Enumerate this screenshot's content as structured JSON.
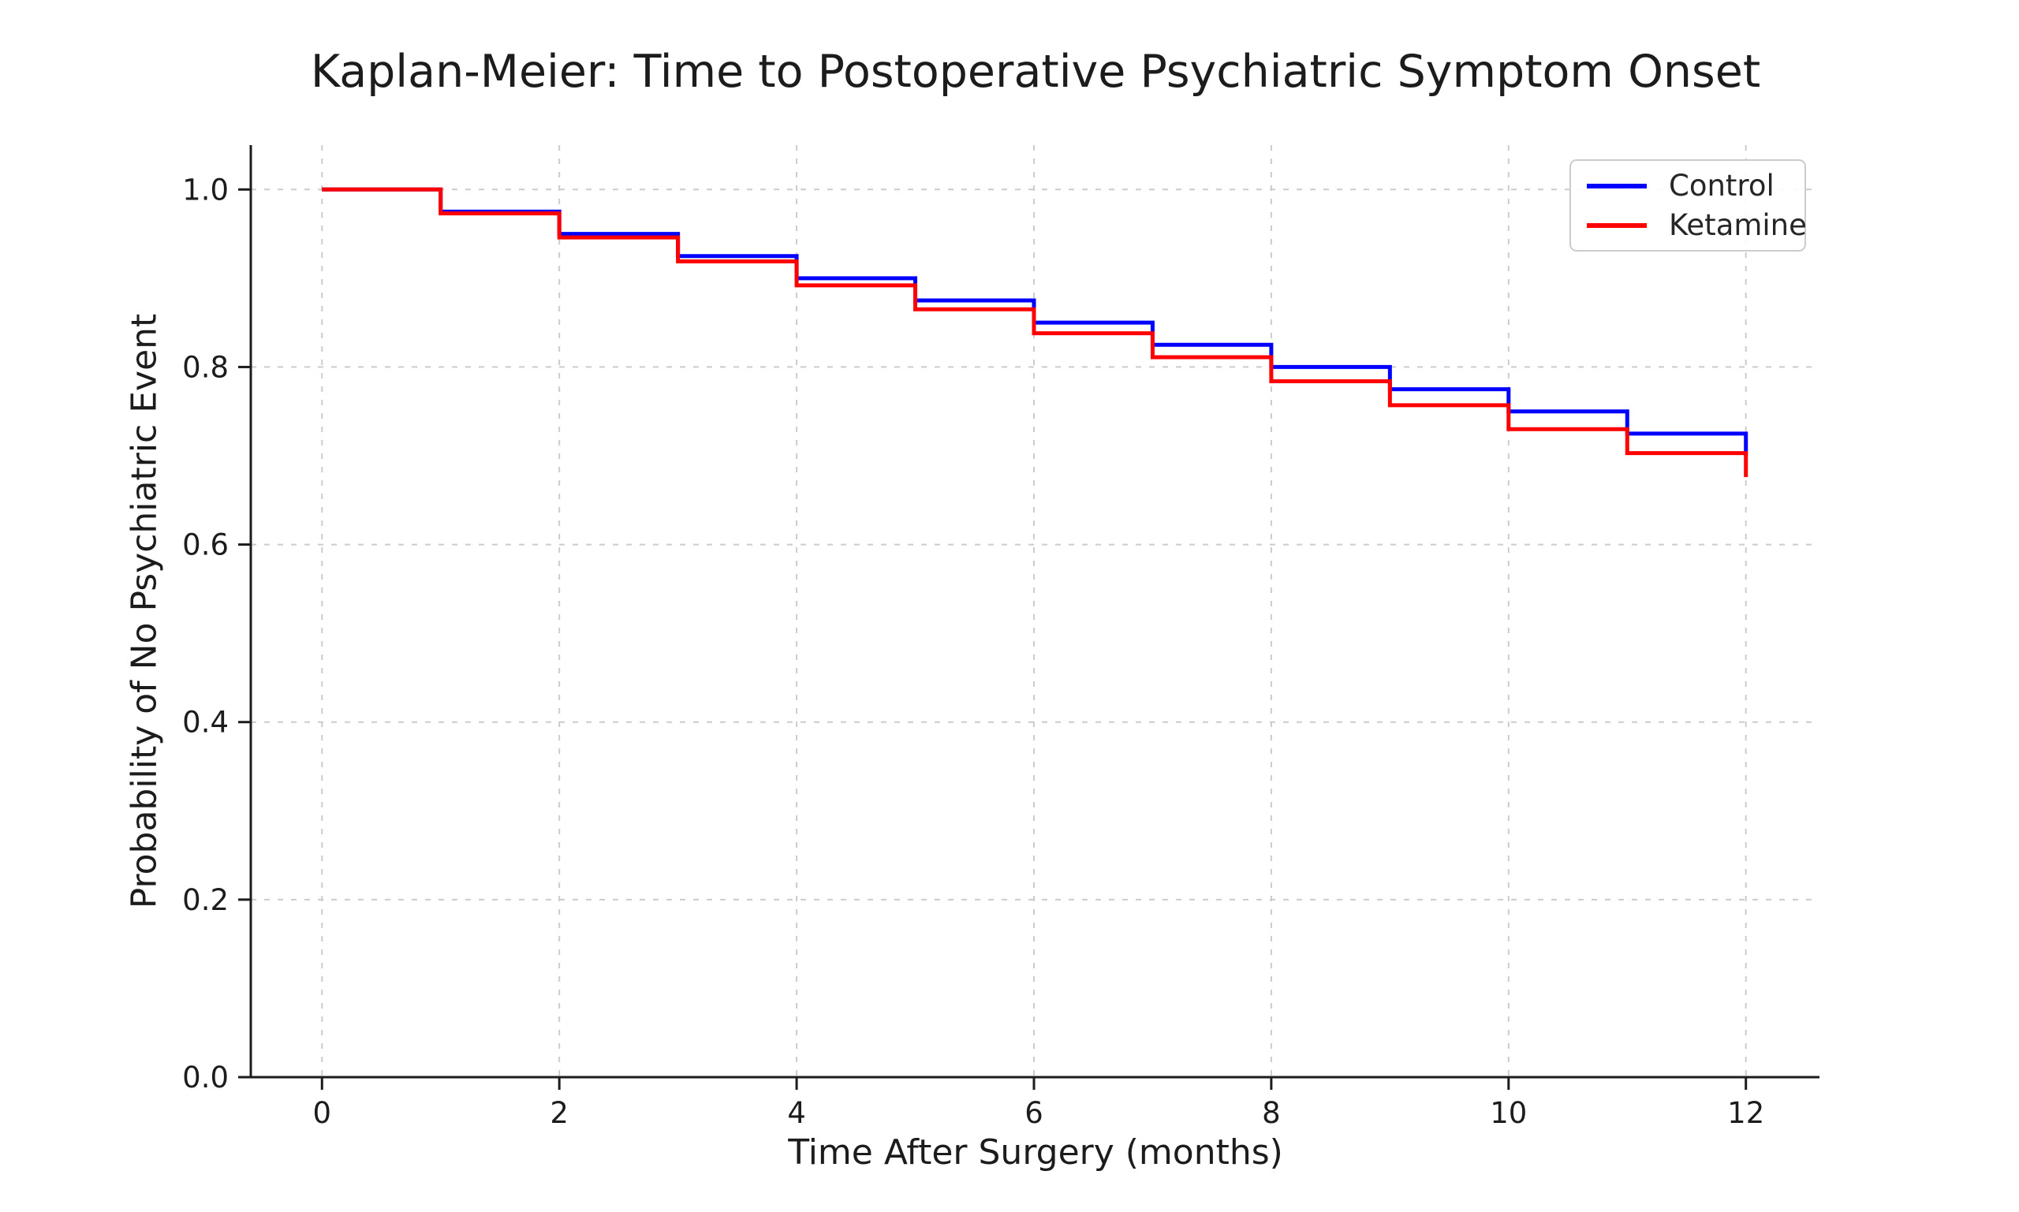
{
  "chart": {
    "title": "Kaplan-Meier: Time to Postoperative Psychiatric Symptom Onset",
    "xlabel": "Time After Surgery (months)",
    "ylabel": "Probability of No Psychiatric Event"
  },
  "chart_data": {
    "type": "line",
    "subtype": "kaplan-meier-step",
    "title": "Kaplan-Meier: Time to Postoperative Psychiatric Symptom Onset",
    "xlabel": "Time After Surgery (months)",
    "ylabel": "Probability of No Psychiatric Event",
    "x": [
      0,
      1,
      2,
      3,
      4,
      5,
      6,
      7,
      8,
      9,
      10,
      11,
      12
    ],
    "series": [
      {
        "name": "Control",
        "color": "#0000ff",
        "values": [
          1.0,
          0.975,
          0.95,
          0.925,
          0.9,
          0.875,
          0.85,
          0.825,
          0.8,
          0.775,
          0.75,
          0.725,
          0.7
        ]
      },
      {
        "name": "Ketamine",
        "color": "#ff0000",
        "values": [
          1.0,
          0.973,
          0.946,
          0.919,
          0.892,
          0.865,
          0.838,
          0.811,
          0.784,
          0.757,
          0.73,
          0.703,
          0.676
        ]
      }
    ],
    "xticks": [
      0,
      2,
      4,
      6,
      8,
      10,
      12
    ],
    "xtick_labels": [
      "0",
      "2",
      "4",
      "6",
      "8",
      "10",
      "12"
    ],
    "yticks": [
      0.0,
      0.2,
      0.4,
      0.6,
      0.8,
      1.0
    ],
    "ytick_labels": [
      "0.0",
      "0.2",
      "0.4",
      "0.6",
      "0.8",
      "1.0"
    ],
    "xlim": [
      -0.6,
      12.62
    ],
    "ylim": [
      0.0,
      1.05
    ],
    "grid": true,
    "grid_color": "#cccccc",
    "legend_position": "upper right",
    "axis_color": "#1c1c1c",
    "background": "#ffffff"
  }
}
